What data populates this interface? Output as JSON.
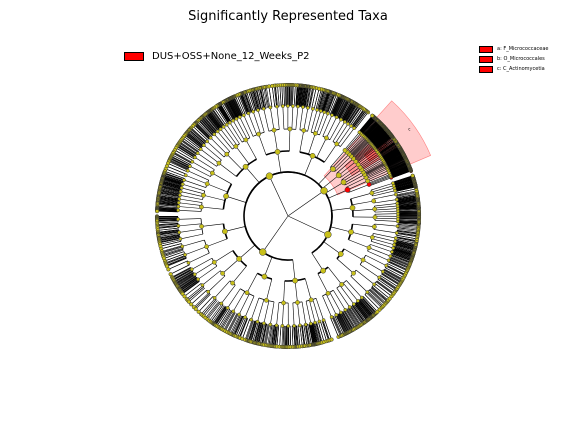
{
  "title": "Significantly Represented Taxa",
  "legend": {
    "label": "DUS+OSS+None_12_Weeks_P2",
    "color": "#ff0000"
  },
  "clades": [
    {
      "letter": "a",
      "label": "a: F_Micrococcaceae"
    },
    {
      "letter": "b",
      "label": "b: O_Micrococcales"
    },
    {
      "letter": "c",
      "label": "c: C_Actinomycetia"
    }
  ],
  "colors": {
    "node_default": "#c8c01a",
    "node_highlight": "#ff0000",
    "wedge": "#ff0000"
  }
}
